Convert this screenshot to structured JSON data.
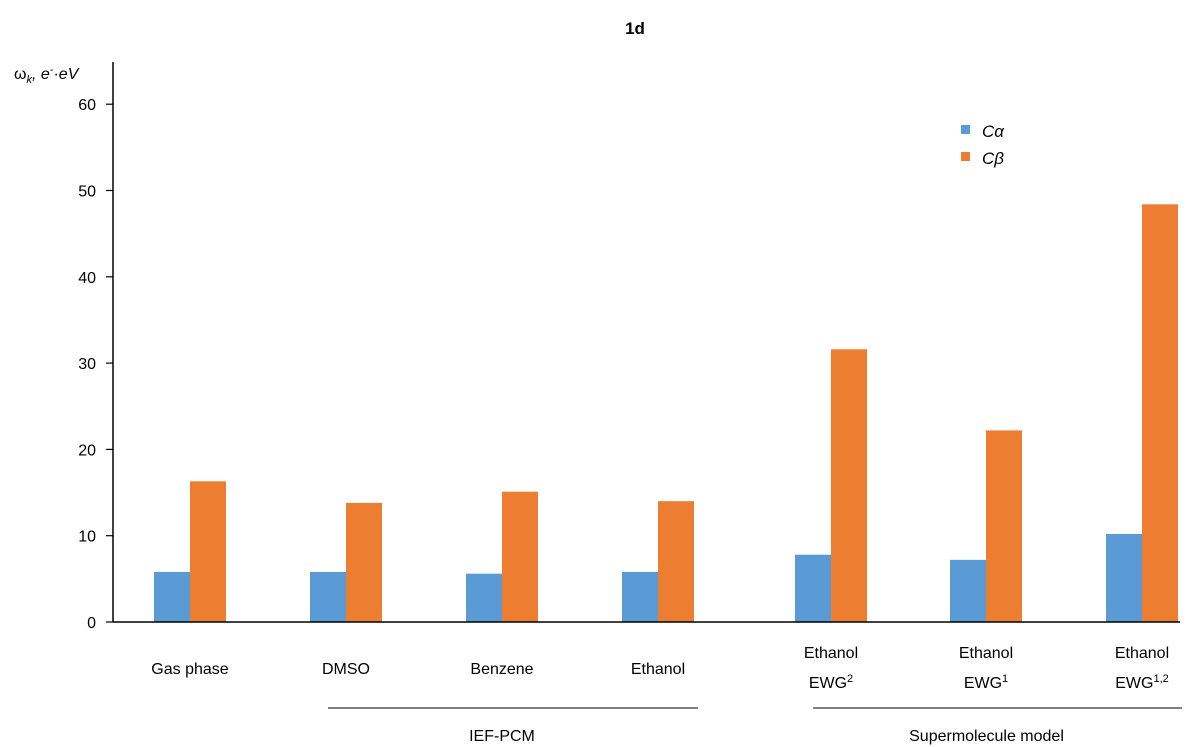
{
  "chart_data": {
    "type": "bar",
    "title": "1d",
    "ylabel": {
      "base": "ω",
      "sub": "k",
      "rest": ", e",
      "sup": "-",
      "tail": "·eV"
    },
    "ylim": [
      0,
      60
    ],
    "yticks": [
      "0",
      "10",
      "20",
      "30",
      "40",
      "50",
      "60"
    ],
    "categories": [
      {
        "line1": "Gas phase",
        "line2": null,
        "sup": null
      },
      {
        "line1": "DMSO",
        "line2": null,
        "sup": null
      },
      {
        "line1": "Benzene",
        "line2": null,
        "sup": null
      },
      {
        "line1": "Ethanol",
        "line2": null,
        "sup": null
      },
      {
        "line1": "Ethanol",
        "line2": "EWG",
        "sup": "2"
      },
      {
        "line1": "Ethanol",
        "line2": "EWG",
        "sup": "1"
      },
      {
        "line1": "Ethanol",
        "line2": "EWG",
        "sup": "1,2"
      }
    ],
    "series": [
      {
        "name": "Cα",
        "color": "#5b9bd5",
        "values": [
          5.8,
          5.8,
          5.6,
          5.8,
          7.8,
          7.2,
          10.2
        ]
      },
      {
        "name": "Cβ",
        "color": "#ed7d31",
        "values": [
          16.3,
          13.8,
          15.1,
          14.0,
          31.6,
          22.2,
          48.4
        ]
      }
    ],
    "groups": [
      {
        "label": "IEF-PCM",
        "from": 1,
        "to": 3
      },
      {
        "label": "Supermolecule model",
        "from": 4,
        "to": 6
      }
    ],
    "legend": "top-right",
    "grid": false
  }
}
